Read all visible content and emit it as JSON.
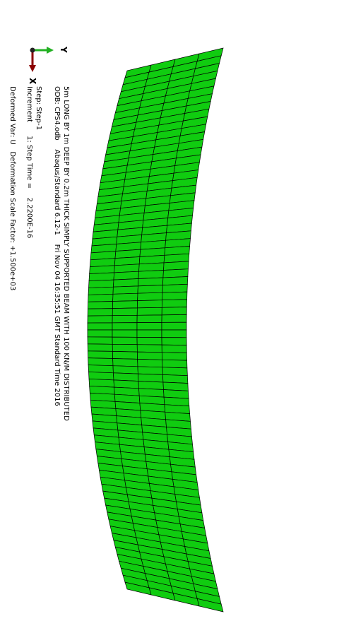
{
  "title_block": {
    "line1": "5m LONG BY 1m DEEP BY 0.2m THICK SIMPLY SUPPORTED BEAM WITH 100 KN/M DISTRIBUTED",
    "line2": "ODB: CPS4.odb    Abaqus/Standard 6.12-1    Fri Nov 04 16:35:51 GMT Standard Time 2016"
  },
  "step_block": {
    "line1": "Step: Step-1",
    "line2": "Increment      1: Step Time =    2.2200E-16"
  },
  "deform_block": {
    "line1": "Deformed Var: U   Deformation Scale Factor: +1.500e+03"
  },
  "triad": {
    "y_label": "Y",
    "x_label": "X",
    "y_color": "#22b022",
    "x_color": "#8b0000"
  },
  "mesh": {
    "elements_along_length": 74,
    "elements_through_depth": 4,
    "fill_color": "#10cc10",
    "edge_color": "#000000"
  }
}
